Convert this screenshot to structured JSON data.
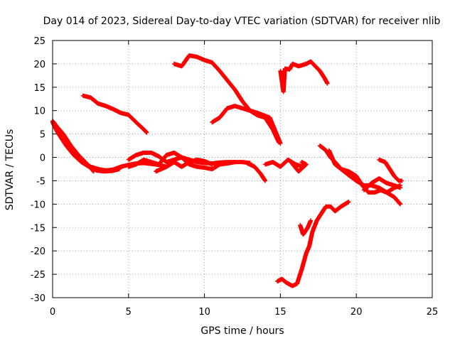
{
  "chart_data": {
    "type": "scatter",
    "title": "Day 014 of 2023, Sidereal Day-to-day VTEC variation (SDTVAR) for receiver nlib",
    "xlabel": "GPS time / hours",
    "ylabel": "SDTVAR / TECUs",
    "xlim": [
      0,
      25
    ],
    "ylim": [
      -30,
      25
    ],
    "xticks": [
      0,
      5,
      10,
      15,
      20,
      25
    ],
    "yticks": [
      -30,
      -25,
      -20,
      -15,
      -10,
      -5,
      0,
      5,
      10,
      15,
      20,
      25
    ],
    "grid": true,
    "marker": "plus",
    "color": "#ff0000",
    "series": [
      {
        "name": "trace-a",
        "points": [
          [
            0,
            7.5
          ],
          [
            0.3,
            5.5
          ],
          [
            0.6,
            4
          ],
          [
            1,
            2.5
          ],
          [
            1.5,
            0.5
          ],
          [
            2,
            -1
          ],
          [
            2.5,
            -2
          ],
          [
            3,
            -2.5
          ],
          [
            3.5,
            -2.8
          ],
          [
            4,
            -2.6
          ],
          [
            4.5,
            -2
          ],
          [
            5,
            -1.6
          ],
          [
            5.5,
            -1.3
          ],
          [
            6,
            -1.2
          ],
          [
            6.5,
            -1.4
          ],
          [
            7,
            -1.6
          ],
          [
            7.5,
            -2
          ]
        ]
      },
      {
        "name": "trace-b",
        "points": [
          [
            0,
            7.8
          ],
          [
            0.3,
            6.5
          ],
          [
            0.7,
            5
          ],
          [
            1.2,
            2.5
          ],
          [
            1.7,
            0.5
          ],
          [
            2.3,
            -1.5
          ],
          [
            2.7,
            -3
          ]
        ]
      },
      {
        "name": "trace-c",
        "points": [
          [
            0.2,
            6.5
          ],
          [
            0.5,
            4.5
          ],
          [
            0.9,
            2.5
          ],
          [
            1.4,
            0.5
          ],
          [
            1.9,
            -1
          ],
          [
            2.4,
            -2
          ],
          [
            2.9,
            -2.8
          ],
          [
            3.4,
            -3
          ],
          [
            3.9,
            -2.9
          ],
          [
            4.4,
            -2.5
          ]
        ]
      },
      {
        "name": "trace-d",
        "points": [
          [
            2,
            13.2
          ],
          [
            2.5,
            12.8
          ],
          [
            3,
            11.5
          ],
          [
            3.5,
            11
          ],
          [
            4,
            10.3
          ],
          [
            4.5,
            9.5
          ],
          [
            5,
            9.1
          ],
          [
            5.5,
            7.5
          ],
          [
            6,
            6
          ],
          [
            6.2,
            5.3
          ]
        ]
      },
      {
        "name": "trace-e",
        "points": [
          [
            8,
            20
          ],
          [
            8.5,
            19.5
          ],
          [
            9,
            21.8
          ],
          [
            9.5,
            21.5
          ],
          [
            10,
            20.8
          ],
          [
            10.5,
            20.3
          ],
          [
            11,
            18.5
          ],
          [
            11.5,
            16.5
          ],
          [
            12,
            14.5
          ],
          [
            12.5,
            12
          ],
          [
            13,
            10
          ],
          [
            13.5,
            9
          ],
          [
            14,
            8.5
          ],
          [
            14.5,
            6
          ],
          [
            14.9,
            3.2
          ]
        ]
      },
      {
        "name": "trace-f",
        "points": [
          [
            10.5,
            7.5
          ],
          [
            11,
            8.5
          ],
          [
            11.5,
            10.5
          ],
          [
            12,
            11
          ],
          [
            12.5,
            10.5
          ],
          [
            13.5,
            9.5
          ],
          [
            14.3,
            8.5
          ],
          [
            15,
            3
          ]
        ]
      },
      {
        "name": "trace-g",
        "points": [
          [
            5,
            -0.5
          ],
          [
            5.5,
            0.5
          ],
          [
            6,
            1
          ],
          [
            6.5,
            1
          ],
          [
            7,
            0.2
          ],
          [
            7.5,
            -1
          ],
          [
            8,
            -0.5
          ],
          [
            8.5,
            0
          ],
          [
            9,
            -0.5
          ],
          [
            9.5,
            -1
          ],
          [
            10,
            -1.2
          ],
          [
            10.5,
            -1.3
          ],
          [
            11,
            -1.1
          ],
          [
            11.5,
            -1
          ],
          [
            12,
            -1
          ],
          [
            12.5,
            -1
          ],
          [
            13,
            -1.2
          ]
        ]
      },
      {
        "name": "trace-h",
        "points": [
          [
            5,
            -2
          ],
          [
            5.5,
            -1.5
          ],
          [
            6,
            -0.5
          ],
          [
            6.5,
            -1
          ],
          [
            7,
            -1.5
          ],
          [
            7.5,
            0.5
          ],
          [
            8,
            1
          ],
          [
            8.5,
            0
          ],
          [
            9,
            -1.5
          ],
          [
            9.5,
            -2
          ],
          [
            10,
            -2.2
          ],
          [
            10.5,
            -2.5
          ],
          [
            11,
            -1.5
          ],
          [
            11.5,
            -1.3
          ],
          [
            12,
            -1
          ]
        ]
      },
      {
        "name": "trace-i",
        "points": [
          [
            6.8,
            -3
          ],
          [
            7.5,
            -2
          ],
          [
            8,
            -1
          ],
          [
            8.5,
            -2
          ],
          [
            9,
            -1
          ],
          [
            9.5,
            -0.5
          ],
          [
            10,
            -0.8
          ],
          [
            10.5,
            -1.5
          ]
        ]
      },
      {
        "name": "trace-j",
        "points": [
          [
            12.8,
            -1.2
          ],
          [
            13.3,
            -2
          ],
          [
            13.7,
            -3.5
          ],
          [
            14,
            -5
          ]
        ]
      },
      {
        "name": "trace-k",
        "points": [
          [
            14,
            -1.5
          ],
          [
            14.5,
            -1
          ],
          [
            15,
            -2
          ],
          [
            15.5,
            -0.5
          ],
          [
            16,
            -1.5
          ],
          [
            16.5,
            -2
          ]
        ]
      },
      {
        "name": "trace-l",
        "points": [
          [
            15.7,
            -1
          ],
          [
            16.2,
            -3
          ],
          [
            16.7,
            -1.5
          ],
          [
            16.4,
            -1
          ]
        ]
      },
      {
        "name": "trace-m",
        "points": [
          [
            15,
            18.5
          ],
          [
            15.2,
            14
          ],
          [
            15.3,
            19
          ],
          [
            15.6,
            18.8
          ],
          [
            15.8,
            20
          ],
          [
            16.2,
            19.5
          ],
          [
            16.7,
            20
          ],
          [
            17,
            20.5
          ],
          [
            17.3,
            19.5
          ],
          [
            17.6,
            18.5
          ],
          [
            17.9,
            17
          ],
          [
            18.1,
            15.8
          ]
        ]
      },
      {
        "name": "trace-n",
        "points": [
          [
            15.1,
            17
          ],
          [
            15.2,
            14.5
          ]
        ]
      },
      {
        "name": "trace-o",
        "points": [
          [
            14.8,
            -26.5
          ],
          [
            15.1,
            -26
          ],
          [
            15.4,
            -26.8
          ],
          [
            15.8,
            -27.5
          ],
          [
            16.1,
            -27
          ],
          [
            16.4,
            -24
          ],
          [
            16.7,
            -20.5
          ],
          [
            16.9,
            -19
          ],
          [
            17.1,
            -16
          ],
          [
            17.4,
            -13.5
          ],
          [
            17.7,
            -12
          ],
          [
            18,
            -10.5
          ],
          [
            18.3,
            -10.5
          ],
          [
            18.6,
            -11.5
          ],
          [
            19,
            -10.5
          ],
          [
            19.5,
            -9.5
          ]
        ]
      },
      {
        "name": "trace-p",
        "points": [
          [
            16.3,
            -14.5
          ],
          [
            16.5,
            -16.5
          ],
          [
            16.8,
            -15
          ],
          [
            17,
            -13.5
          ]
        ]
      },
      {
        "name": "trace-q",
        "points": [
          [
            17.6,
            2.5
          ],
          [
            18,
            1.5
          ],
          [
            18.3,
            0
          ],
          [
            18.6,
            -1
          ],
          [
            19,
            -2.5
          ],
          [
            19.5,
            -3.8
          ],
          [
            20,
            -5
          ],
          [
            20.5,
            -6
          ],
          [
            21,
            -6
          ],
          [
            21.5,
            -6.5
          ],
          [
            22,
            -7.5
          ],
          [
            22.5,
            -8.5
          ],
          [
            22.9,
            -10
          ]
        ]
      },
      {
        "name": "trace-r",
        "points": [
          [
            18.2,
            1.5
          ],
          [
            18.6,
            -1.5
          ],
          [
            19,
            -2.5
          ],
          [
            19.5,
            -3
          ],
          [
            20,
            -4
          ],
          [
            20.4,
            -6
          ],
          [
            20.8,
            -7.5
          ],
          [
            21.2,
            -7.5
          ],
          [
            21.6,
            -7
          ],
          [
            22,
            -7.5
          ],
          [
            22.5,
            -6.5
          ],
          [
            22.9,
            -6
          ]
        ]
      },
      {
        "name": "trace-s",
        "points": [
          [
            21.5,
            -0.5
          ],
          [
            21.9,
            -1
          ],
          [
            22.2,
            -2.5
          ],
          [
            22.5,
            -4
          ],
          [
            22.8,
            -5
          ],
          [
            23,
            -5
          ]
        ]
      },
      {
        "name": "trace-t",
        "points": [
          [
            20.5,
            -7
          ],
          [
            21,
            -5.5
          ],
          [
            21.5,
            -4.5
          ],
          [
            22,
            -5.5
          ],
          [
            22.5,
            -6
          ],
          [
            22.9,
            -6.5
          ]
        ]
      }
    ]
  }
}
